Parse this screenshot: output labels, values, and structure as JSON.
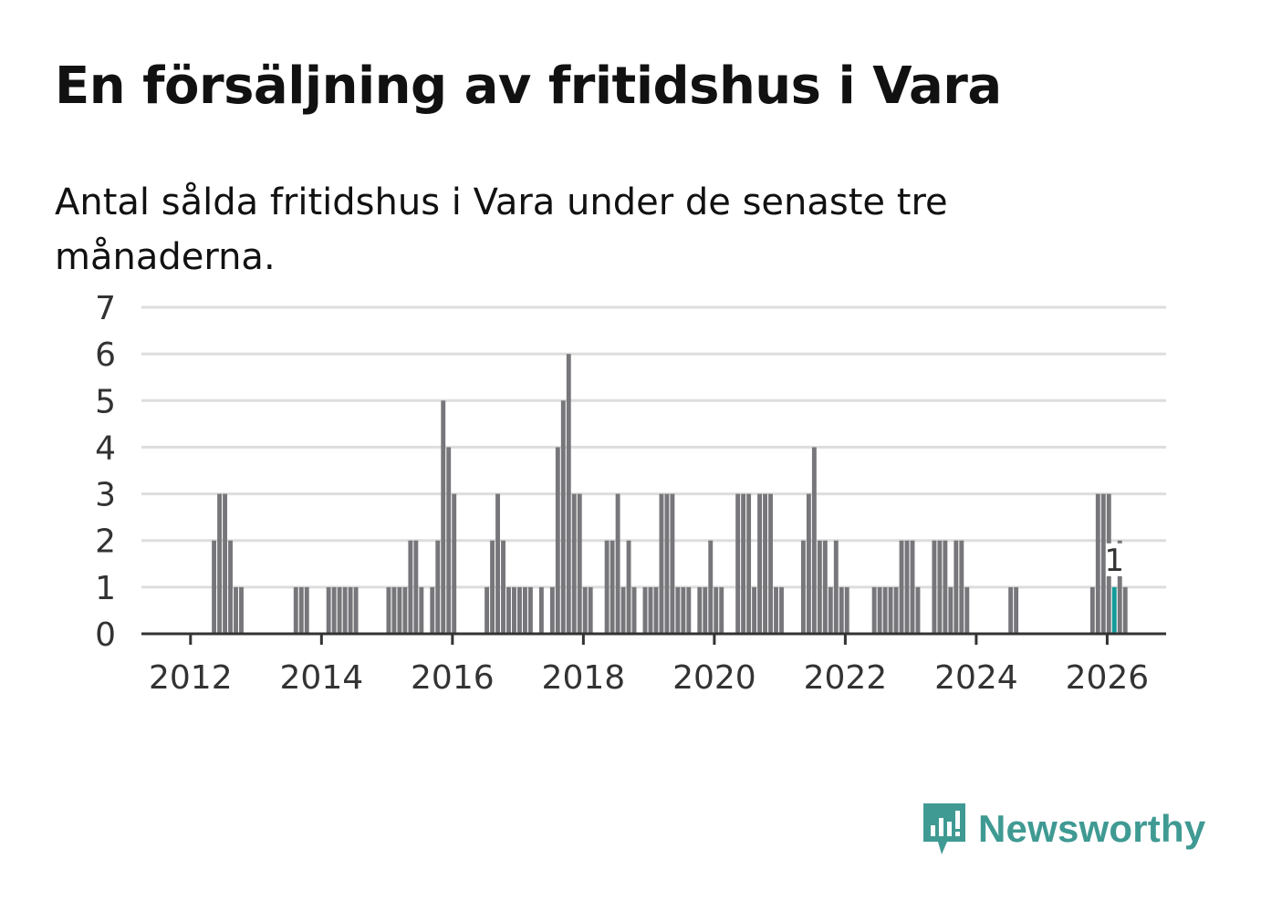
{
  "title": "En försäljning av fritidshus i Vara",
  "subtitle": "Antal sålda fritidshus i Vara under de senaste tre månaderna.",
  "brand": {
    "name": "Newsworthy",
    "color": "#3f9a93",
    "icon": "newsworthy-logo-icon"
  },
  "colors": {
    "bar": "#77767a",
    "highlight": "#139b9a",
    "grid": "#dddddd",
    "axis": "#333333"
  },
  "chart_data": {
    "type": "bar",
    "title": "En försäljning av fritidshus i Vara",
    "xlabel": "",
    "ylabel": "",
    "ylim": [
      0,
      7
    ],
    "yticks": [
      "0",
      "1",
      "2",
      "3",
      "4",
      "5",
      "6",
      "7"
    ],
    "xticks": [
      "2012",
      "2014",
      "2016",
      "2018",
      "2020",
      "2022",
      "2024",
      "2026"
    ],
    "x_start": "2011-08",
    "x_range_years": [
      2011.25,
      2026.9
    ],
    "series": [
      {
        "name": "Antal sålda fritidshus",
        "monthly_values": [
          0,
          0,
          0,
          0,
          0,
          0,
          0,
          0,
          0,
          2,
          3,
          3,
          2,
          1,
          1,
          0,
          0,
          0,
          0,
          0,
          0,
          0,
          0,
          0,
          1,
          1,
          1,
          0,
          0,
          0,
          1,
          1,
          1,
          1,
          1,
          1,
          0,
          0,
          0,
          0,
          0,
          1,
          1,
          1,
          1,
          2,
          2,
          1,
          0,
          1,
          2,
          5,
          4,
          3,
          0,
          0,
          0,
          0,
          0,
          1,
          2,
          3,
          2,
          1,
          1,
          1,
          1,
          1,
          0,
          1,
          0,
          1,
          4,
          5,
          6,
          3,
          3,
          1,
          1,
          0,
          0,
          2,
          2,
          3,
          1,
          2,
          1,
          0,
          1,
          1,
          1,
          3,
          3,
          3,
          1,
          1,
          1,
          0,
          1,
          1,
          2,
          1,
          1,
          0,
          0,
          3,
          3,
          3,
          1,
          3,
          3,
          3,
          1,
          1,
          0,
          0,
          0,
          2,
          3,
          4,
          2,
          2,
          1,
          2,
          1,
          1,
          0,
          0,
          0,
          0,
          1,
          1,
          1,
          1,
          1,
          2,
          2,
          2,
          1,
          0,
          0,
          2,
          2,
          2,
          1,
          2,
          2,
          1,
          0,
          0,
          0,
          0,
          0,
          0,
          0,
          1,
          1,
          0,
          0,
          0,
          0,
          0,
          0,
          0,
          0,
          0,
          0,
          0,
          0,
          0,
          1,
          3,
          3,
          3,
          1,
          2,
          1
        ]
      }
    ],
    "highlight": {
      "period": "2026-02",
      "value": 1,
      "label": "1"
    }
  }
}
